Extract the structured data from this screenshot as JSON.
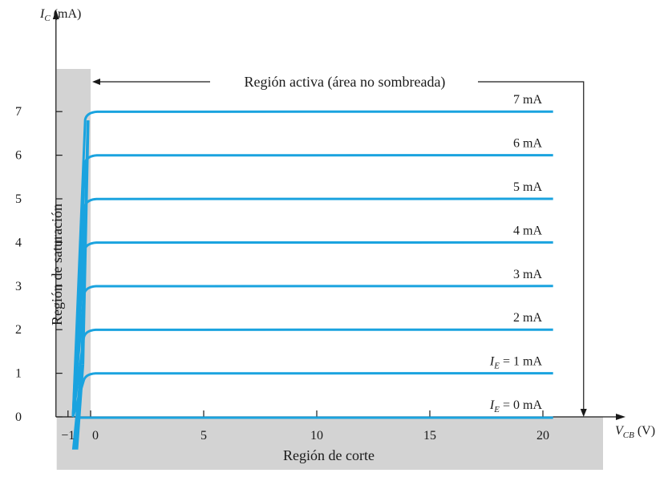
{
  "chart_data": {
    "type": "line",
    "xlabel": {
      "main": "V",
      "sub": "CB",
      "unit": "(V)"
    },
    "ylabel": {
      "main": "I",
      "sub": "C",
      "unit": "(mA)"
    },
    "xlim": [
      -1.55,
      22.6
    ],
    "ylim": [
      0,
      8.0
    ],
    "xticks": [
      -1,
      0,
      5,
      10,
      15,
      20
    ],
    "xtick_labels": [
      "−1",
      "0",
      "5",
      "10",
      "15",
      "20"
    ],
    "yticks": [
      0,
      1,
      2,
      3,
      4,
      5,
      6,
      7
    ],
    "ytick_labels": [
      "0",
      "1",
      "2",
      "3",
      "4",
      "5",
      "6",
      "7"
    ],
    "series": [
      {
        "label_parts": [
          "I",
          "E",
          " = 0 mA"
        ],
        "ie": 0,
        "x": [
          -0.5,
          20.5
        ],
        "y": [
          0,
          0
        ]
      },
      {
        "label_parts": [
          "I",
          "E",
          " = 1 mA"
        ],
        "ie": 1,
        "x": [
          -0.5,
          20.5
        ],
        "y": [
          1,
          1
        ]
      },
      {
        "label_parts": [
          "",
          "",
          "2 mA"
        ],
        "ie": 2,
        "x": [
          -0.5,
          20.5
        ],
        "y": [
          2,
          2
        ]
      },
      {
        "label_parts": [
          "",
          "",
          "3  mA"
        ],
        "ie": 3,
        "x": [
          -0.5,
          20.5
        ],
        "y": [
          3,
          3
        ]
      },
      {
        "label_parts": [
          "",
          "",
          "4  mA"
        ],
        "ie": 4,
        "x": [
          -0.5,
          20.5
        ],
        "y": [
          4,
          4
        ]
      },
      {
        "label_parts": [
          "",
          "",
          "5  mA"
        ],
        "ie": 5,
        "x": [
          -0.5,
          20.5
        ],
        "y": [
          5,
          5
        ]
      },
      {
        "label_parts": [
          "",
          "",
          "6  mA"
        ],
        "ie": 6,
        "x": [
          -0.5,
          20.5
        ],
        "y": [
          6,
          6
        ]
      },
      {
        "label_parts": [
          "",
          "",
          "7  mA"
        ],
        "ie": 7,
        "x": [
          -0.5,
          20.5
        ],
        "y": [
          7,
          7
        ]
      }
    ],
    "regions": {
      "saturation": {
        "label": "Región de saturación",
        "x_range": [
          -1.5,
          0
        ]
      },
      "cutoff": {
        "label": "Región de corte",
        "y_range": [
          -1.2,
          0
        ]
      },
      "active": {
        "label": "Región activa (área no sombreada)"
      }
    },
    "active_arrow_x": 21.8,
    "colors": {
      "curve": "#1aa3df",
      "shade": "#d3d3d3",
      "axis": "#1a1a1a"
    }
  }
}
